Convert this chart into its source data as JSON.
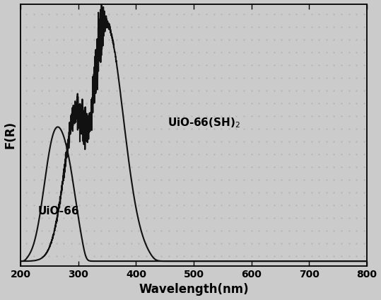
{
  "title": "",
  "xlabel": "Wavelength(nm)",
  "ylabel": "F(R)",
  "xlim": [
    200,
    800
  ],
  "label_uio66": "UiO-66",
  "label_sh2": "UiO-66(SH)$_2$",
  "xticks": [
    200,
    300,
    400,
    500,
    600,
    700,
    800
  ],
  "background_color": "#d4d4d4",
  "line_color": "#111111",
  "xlabel_fontsize": 12,
  "ylabel_fontsize": 12,
  "tick_fontsize": 10,
  "annotation_fontsize": 11
}
